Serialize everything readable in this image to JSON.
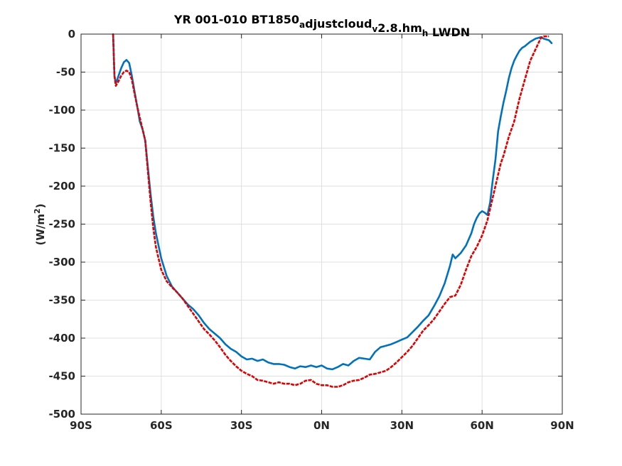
{
  "chart_data": {
    "type": "line",
    "title": {
      "parts": [
        {
          "text": "YR 001-010 BT1850",
          "sub": false
        },
        {
          "text": "a",
          "sub": true
        },
        {
          "text": "djustcloud",
          "sub": false
        },
        {
          "text": "v",
          "sub": true
        },
        {
          "text": "2.8.hm",
          "sub": false
        },
        {
          "text": "h",
          "sub": true
        },
        {
          "text": " LWDN",
          "sub": false
        }
      ]
    },
    "xlabel": "",
    "ylabel": {
      "before": "(W/m",
      "sup": "2",
      "after": ")"
    },
    "xlim": [
      -90,
      90
    ],
    "ylim": [
      -500,
      0
    ],
    "xticks": [
      -90,
      -60,
      -30,
      0,
      30,
      60,
      90
    ],
    "xtick_labels": [
      "90S",
      "60S",
      "30S",
      "0N",
      "30N",
      "60N",
      "90N"
    ],
    "yticks": [
      0,
      -50,
      -100,
      -150,
      -200,
      -250,
      -300,
      -350,
      -400,
      -450,
      -500
    ],
    "ytick_labels": [
      "0",
      "-50",
      "-100",
      "-150",
      "-200",
      "-250",
      "-300",
      "-350",
      "-400",
      "-450",
      "-500"
    ],
    "grid": true,
    "legend": "none",
    "series": [
      {
        "color": "#0072BD",
        "style": "solid",
        "x": [
          -78,
          -77.5,
          -77,
          -76,
          -75,
          -74,
          -73,
          -72,
          -71,
          -70,
          -69,
          -68,
          -67,
          -66,
          -65,
          -64,
          -63,
          -62,
          -60,
          -58,
          -56,
          -54,
          -52,
          -50,
          -48,
          -46,
          -44,
          -42,
          -40,
          -38,
          -36,
          -34,
          -32,
          -30,
          -28,
          -26,
          -24,
          -22,
          -20,
          -18,
          -16,
          -14,
          -12,
          -10,
          -8,
          -6,
          -4,
          -2,
          0,
          2,
          4,
          6,
          8,
          10,
          12,
          14,
          16,
          18,
          20,
          22,
          24,
          26,
          28,
          30,
          32,
          34,
          36,
          38,
          40,
          42,
          44,
          46,
          48,
          49,
          50,
          52,
          54,
          56,
          57,
          58,
          59,
          60,
          61,
          62,
          63,
          64,
          65,
          66,
          67,
          68,
          69,
          70,
          71,
          72,
          73,
          74,
          75,
          76,
          77,
          78,
          79,
          80,
          81,
          82,
          83,
          84,
          85,
          86
        ],
        "y": [
          0,
          -55,
          -65,
          -55,
          -45,
          -37,
          -34,
          -38,
          -55,
          -75,
          -95,
          -115,
          -125,
          -140,
          -175,
          -210,
          -240,
          -262,
          -295,
          -318,
          -332,
          -340,
          -348,
          -356,
          -362,
          -370,
          -380,
          -388,
          -394,
          -400,
          -408,
          -414,
          -418,
          -424,
          -428,
          -427,
          -430,
          -428,
          -432,
          -434,
          -434,
          -435,
          -438,
          -440,
          -437,
          -438,
          -436,
          -438,
          -436,
          -440,
          -441,
          -438,
          -434,
          -436,
          -430,
          -426,
          -427,
          -428,
          -418,
          -412,
          -410,
          -408,
          -405,
          -402,
          -399,
          -392,
          -385,
          -377,
          -370,
          -358,
          -345,
          -328,
          -305,
          -290,
          -295,
          -288,
          -278,
          -262,
          -250,
          -242,
          -236,
          -233,
          -235,
          -238,
          -222,
          -192,
          -165,
          -128,
          -108,
          -90,
          -75,
          -58,
          -45,
          -35,
          -28,
          -22,
          -18,
          -16,
          -13,
          -10,
          -8,
          -6,
          -5,
          -4,
          -6,
          -7,
          -8,
          -12
        ]
      },
      {
        "color": "#E00000",
        "style": "dashed",
        "x": [
          -78,
          -77.5,
          -77,
          -76,
          -75,
          -74,
          -73,
          -72,
          -71,
          -70,
          -69,
          -68,
          -67,
          -66,
          -65,
          -64,
          -63,
          -62,
          -60,
          -58,
          -56,
          -54,
          -52,
          -50,
          -48,
          -46,
          -44,
          -42,
          -40,
          -38,
          -36,
          -34,
          -32,
          -30,
          -28,
          -26,
          -24,
          -22,
          -20,
          -18,
          -16,
          -14,
          -12,
          -10,
          -8,
          -6,
          -4,
          -2,
          0,
          2,
          4,
          6,
          8,
          10,
          12,
          14,
          16,
          18,
          20,
          22,
          24,
          26,
          28,
          30,
          32,
          34,
          36,
          38,
          40,
          42,
          44,
          46,
          48,
          50,
          52,
          54,
          56,
          58,
          60,
          62,
          64,
          66,
          67,
          68,
          70,
          72,
          74,
          76,
          78,
          80,
          82,
          83,
          84,
          85
        ],
        "y": [
          0,
          -55,
          -68,
          -62,
          -55,
          -50,
          -48,
          -50,
          -60,
          -78,
          -95,
          -110,
          -125,
          -140,
          -180,
          -220,
          -255,
          -280,
          -310,
          -325,
          -333,
          -340,
          -348,
          -358,
          -368,
          -378,
          -388,
          -395,
          -403,
          -412,
          -422,
          -430,
          -437,
          -443,
          -447,
          -450,
          -455,
          -456,
          -458,
          -460,
          -458,
          -460,
          -460,
          -462,
          -460,
          -456,
          -455,
          -460,
          -462,
          -462,
          -464,
          -464,
          -462,
          -458,
          -456,
          -455,
          -452,
          -448,
          -447,
          -445,
          -443,
          -438,
          -432,
          -425,
          -418,
          -410,
          -400,
          -390,
          -383,
          -375,
          -365,
          -355,
          -346,
          -344,
          -330,
          -310,
          -292,
          -280,
          -265,
          -245,
          -215,
          -185,
          -170,
          -160,
          -135,
          -115,
          -85,
          -60,
          -35,
          -20,
          -5,
          -3,
          -3,
          -3
        ]
      }
    ]
  }
}
